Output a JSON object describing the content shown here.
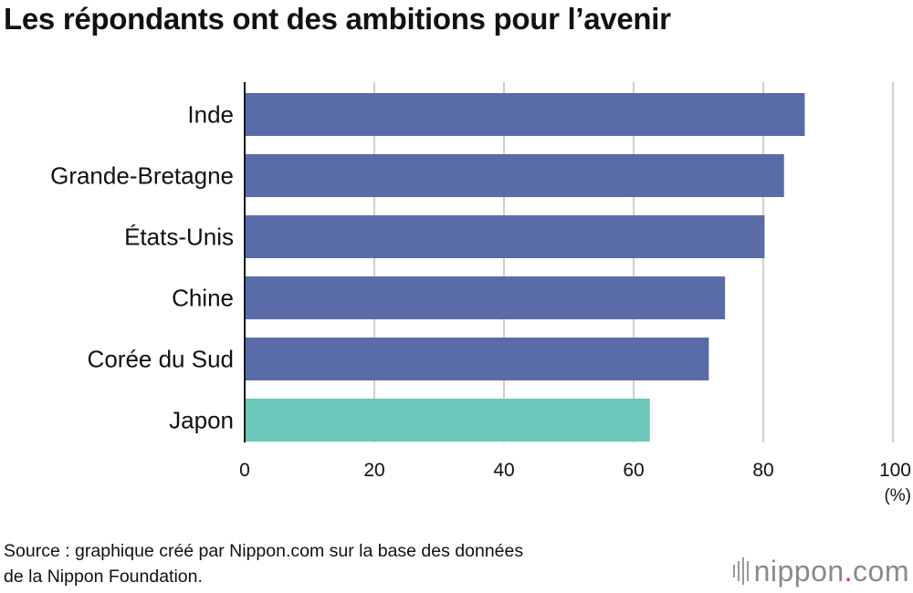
{
  "chart_data": {
    "type": "bar",
    "orientation": "horizontal",
    "title": "Les répondants ont des ambitions pour l’avenir",
    "categories": [
      "Inde",
      "Grande-Bretagne",
      "États-Unis",
      "Chine",
      "Corée du Sud",
      "Japon"
    ],
    "values": [
      86.4,
      83.2,
      80.2,
      74.1,
      71.6,
      62.5
    ],
    "bar_colors": [
      "#5a6ca8",
      "#5a6ca8",
      "#5a6ca8",
      "#5a6ca8",
      "#5a6ca8",
      "#6cc7ba"
    ],
    "xlim": [
      0,
      100
    ],
    "xticks": [
      "0",
      "20",
      "40",
      "60",
      "80",
      "100"
    ],
    "xunit": "(%)",
    "grid": true
  },
  "source_lines": [
    "Source : graphique créé par Nippon.com sur la base des données",
    "de la Nippon Foundation."
  ],
  "brand": {
    "name": "nippon",
    "dot": ".",
    "tld": "com"
  }
}
